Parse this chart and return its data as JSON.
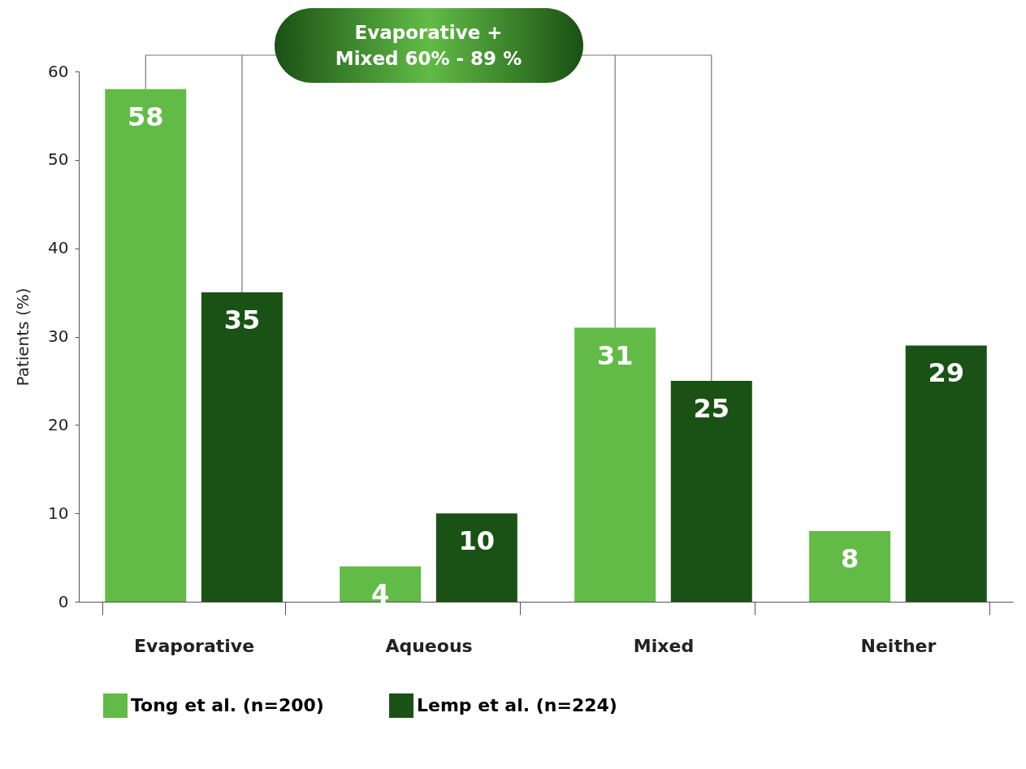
{
  "chart_data": {
    "type": "bar",
    "ylabel": "Patients (%)",
    "categories": [
      "Evaporative",
      "Aqueous",
      "Mixed",
      "Neither"
    ],
    "series": [
      {
        "name": "Tong et al. (n=200)",
        "color": "#62bb46",
        "values": [
          58,
          4,
          31,
          8
        ]
      },
      {
        "name": "Lemp et al. (n=224)",
        "color": "#1a5114",
        "values": [
          35,
          10,
          25,
          29
        ]
      }
    ],
    "ylim": [
      0,
      60
    ],
    "yticks": [
      0,
      10,
      20,
      30,
      40,
      50,
      60
    ],
    "grid": false,
    "legend": "bottom",
    "data_labels": true,
    "annotations": [
      "Evaporative + Mixed 60% - 89 %"
    ]
  }
}
